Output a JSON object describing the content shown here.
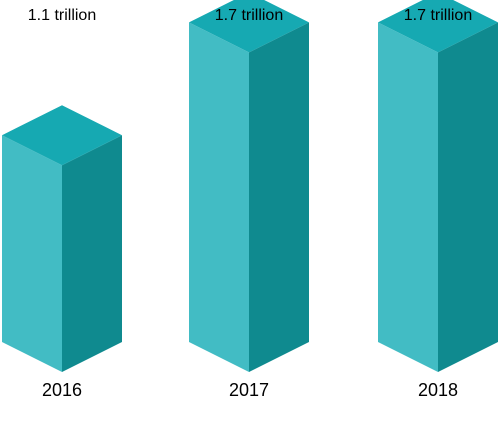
{
  "chart_data": {
    "type": "bar",
    "categories": [
      "2016",
      "2017",
      "2018"
    ],
    "values": [
      1.1,
      1.7,
      1.7
    ],
    "unit": "trillion",
    "value_labels": [
      "1.1  trillion",
      "1.7  trillion",
      "1.7 trillion"
    ],
    "title": "",
    "xlabel": "",
    "ylabel": "",
    "ylim": [
      0,
      1.7
    ],
    "grid": false,
    "legend": "none",
    "style": "3d-isometric-columns",
    "colors": {
      "top": "#16a9b2",
      "front": "#42bcc4",
      "side": "#0f8a8f"
    }
  }
}
